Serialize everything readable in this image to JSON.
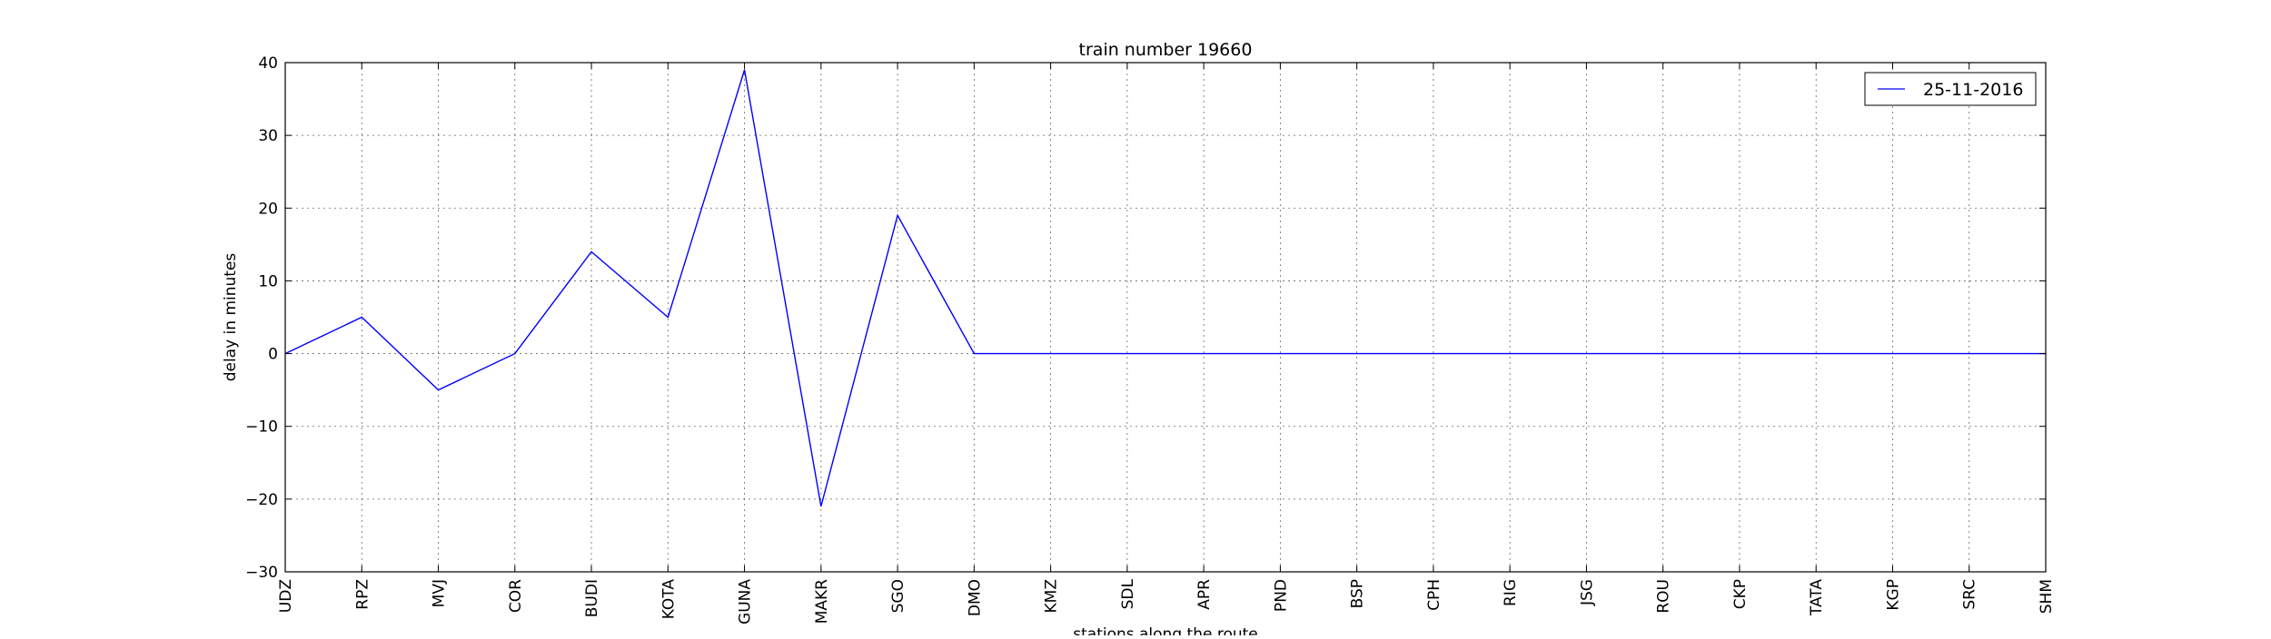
{
  "chart_data": {
    "type": "line",
    "title": "train number 19660",
    "xlabel": "stations along the route",
    "ylabel": "delay in minutes",
    "categories": [
      "UDZ",
      "RPZ",
      "MVJ",
      "COR",
      "BUDI",
      "KOTA",
      "GUNA",
      "MAKR",
      "SGO",
      "DMO",
      "KMZ",
      "SDL",
      "APR",
      "PND",
      "BSP",
      "CPH",
      "RIG",
      "JSG",
      "ROU",
      "CKP",
      "TATA",
      "KGP",
      "SRC",
      "SHM"
    ],
    "series": [
      {
        "name": "25-11-2016",
        "color": "#0000ff",
        "values": [
          0,
          5,
          -5,
          0,
          14,
          5,
          39,
          -21,
          19,
          0,
          0,
          0,
          0,
          0,
          0,
          0,
          0,
          0,
          0,
          0,
          0,
          0,
          0,
          0
        ]
      }
    ],
    "ylim": [
      -30,
      40
    ],
    "yticks": [
      -30,
      -20,
      -10,
      0,
      10,
      20,
      30,
      40
    ],
    "grid": true,
    "legend_position": "top-right"
  }
}
